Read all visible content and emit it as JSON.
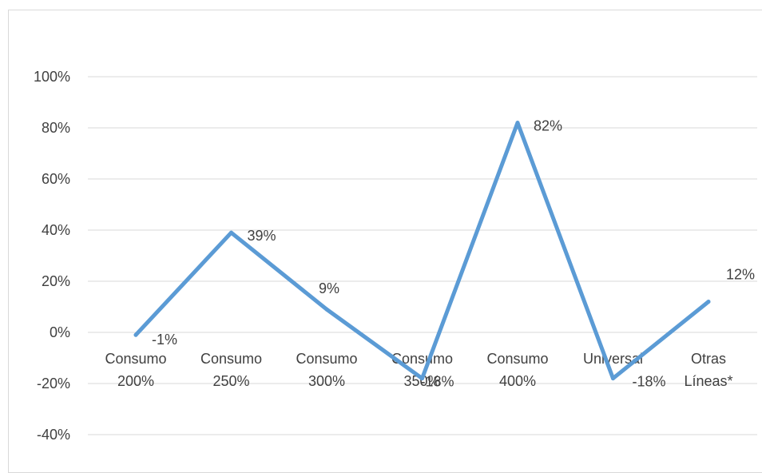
{
  "chart_data": {
    "type": "line",
    "categories": [
      [
        "Consumo",
        "200%"
      ],
      [
        "Consumo",
        "250%"
      ],
      [
        "Consumo",
        "300%"
      ],
      [
        "Consumo",
        "350%"
      ],
      [
        "Consumo",
        "400%"
      ],
      [
        "Universal",
        ""
      ],
      [
        "Otras",
        "Líneas*"
      ]
    ],
    "series": [
      {
        "values": [
          -0.01,
          0.39,
          0.09,
          -0.18,
          0.82,
          -0.18,
          0.12
        ],
        "labels": [
          "-1%",
          "39%",
          "9%",
          "-18%",
          "82%",
          "-18%",
          "12%"
        ]
      }
    ],
    "y_ticks": [
      "100%",
      "80%",
      "60%",
      "40%",
      "20%",
      "0%",
      "-20%",
      "-40%"
    ],
    "y_tick_values": [
      1.0,
      0.8,
      0.6,
      0.4,
      0.2,
      0.0,
      -0.2,
      -0.4
    ],
    "ylim": [
      -0.4,
      1.0
    ],
    "grid": true,
    "colors": {
      "line": "#5b9bd5",
      "grid": "#d9d9d9",
      "text": "#404040"
    }
  }
}
